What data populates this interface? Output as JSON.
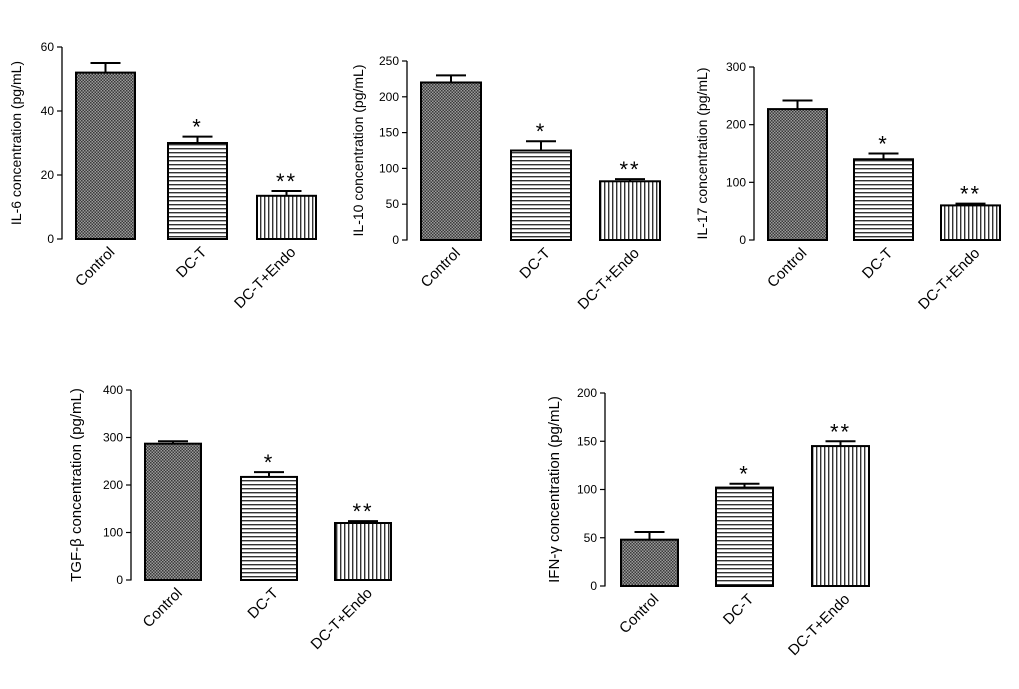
{
  "chart_data": [
    {
      "type": "bar",
      "ylabel": "IL-6 concentration (pg/mL)",
      "categories": [
        "Control",
        "DC-T",
        "DC-T+Endo"
      ],
      "values": [
        52,
        30,
        13.5
      ],
      "errors": [
        3,
        2,
        1.5
      ],
      "significance": [
        "",
        "*",
        "**"
      ],
      "ylim": [
        0,
        60
      ],
      "yticks": [
        0,
        20,
        40,
        60
      ],
      "patterns": [
        "crosshatch",
        "horizontal",
        "vertical"
      ]
    },
    {
      "type": "bar",
      "ylabel": "IL-10 concentration (pg/mL)",
      "categories": [
        "Control",
        "DC-T",
        "DC-T+Endo"
      ],
      "values": [
        220,
        125,
        82
      ],
      "errors": [
        10,
        13,
        3
      ],
      "significance": [
        "",
        "*",
        "**"
      ],
      "ylim": [
        0,
        250
      ],
      "yticks": [
        0,
        50,
        100,
        150,
        200,
        250
      ],
      "patterns": [
        "crosshatch",
        "horizontal",
        "vertical"
      ]
    },
    {
      "type": "bar",
      "ylabel": "IL-17 concentration (pg/mL)",
      "categories": [
        "Control",
        "DC-T",
        "DC-T+Endo"
      ],
      "values": [
        227,
        140,
        60
      ],
      "errors": [
        15,
        10,
        3
      ],
      "significance": [
        "",
        "*",
        "**"
      ],
      "ylim": [
        0,
        300
      ],
      "yticks": [
        0,
        100,
        200,
        300
      ],
      "patterns": [
        "crosshatch",
        "horizontal",
        "vertical"
      ]
    },
    {
      "type": "bar",
      "ylabel": "TGF-β concentration (pg/mL)",
      "categories": [
        "Control",
        "DC-T",
        "DC-T+Endo"
      ],
      "values": [
        287,
        217,
        120
      ],
      "errors": [
        5,
        10,
        4
      ],
      "significance": [
        "",
        "*",
        "**"
      ],
      "ylim": [
        0,
        400
      ],
      "yticks": [
        0,
        100,
        200,
        300,
        400
      ],
      "patterns": [
        "crosshatch",
        "horizontal",
        "vertical"
      ]
    },
    {
      "type": "bar",
      "ylabel": "IFN-γ concentration (pg/mL)",
      "categories": [
        "Control",
        "DC-T",
        "DC-T+Endo"
      ],
      "values": [
        48,
        102,
        145
      ],
      "errors": [
        8,
        4,
        5
      ],
      "significance": [
        "",
        "*",
        "**"
      ],
      "ylim": [
        0,
        200
      ],
      "yticks": [
        0,
        50,
        100,
        150,
        200
      ],
      "patterns": [
        "crosshatch",
        "horizontal",
        "vertical"
      ]
    }
  ]
}
